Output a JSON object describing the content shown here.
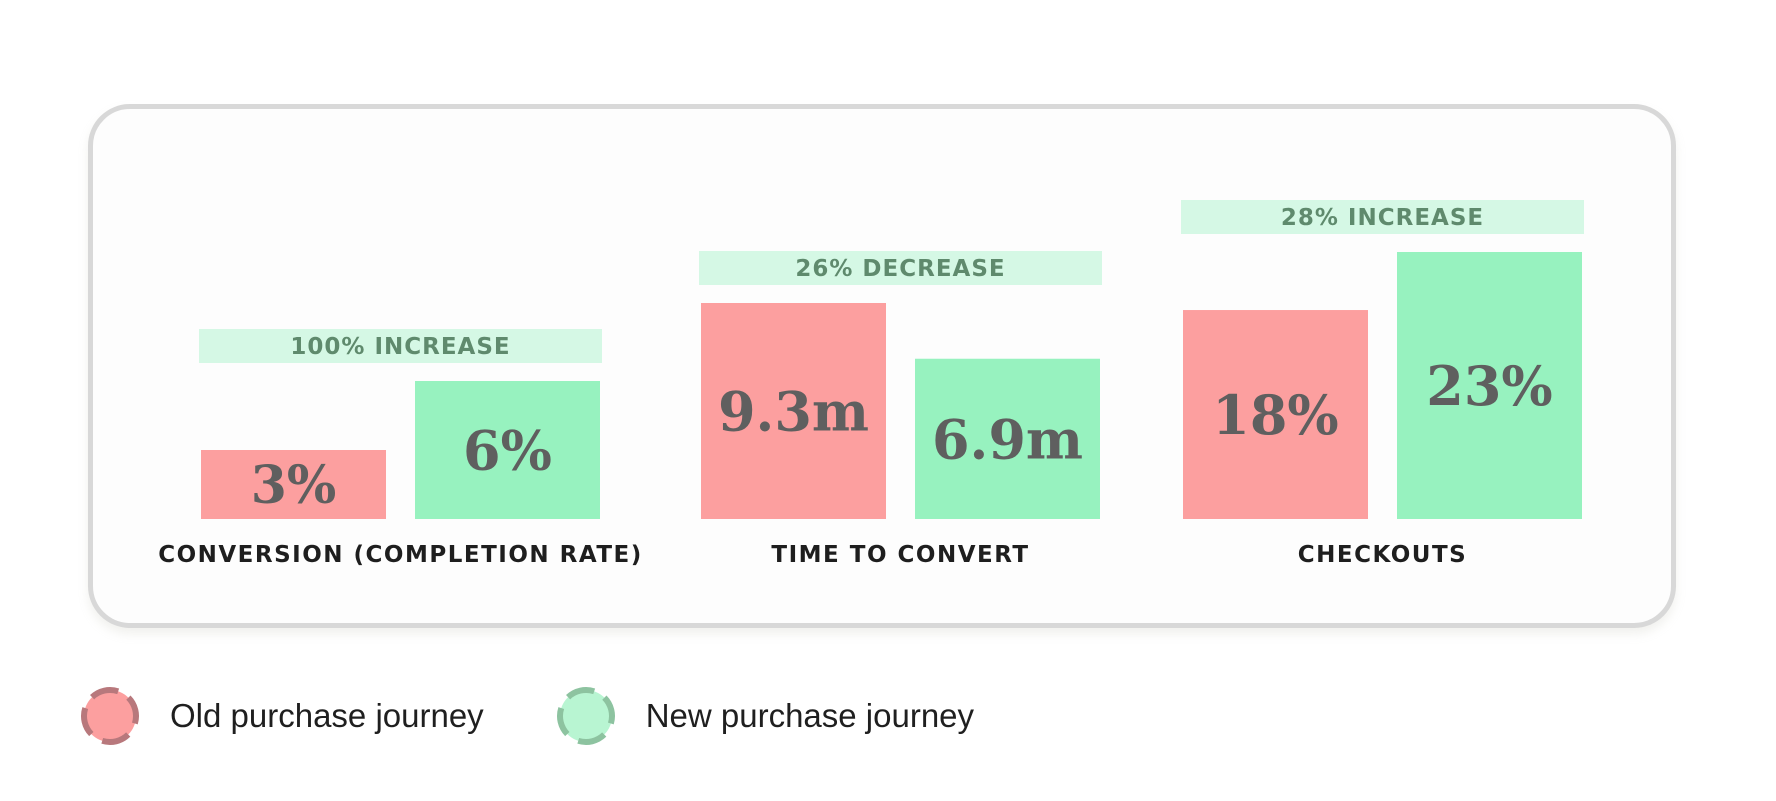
{
  "chart_data": {
    "type": "bar",
    "categories": [
      "CONVERSION (COMPLETION RATE)",
      "TIME TO CONVERT",
      "CHECKOUTS"
    ],
    "series": [
      {
        "name": "Old purchase journey",
        "values": [
          3,
          9.3,
          18
        ],
        "labels": [
          "3%",
          "9.3m",
          "18%"
        ],
        "color": "#fc9f9f"
      },
      {
        "name": "New purchase journey",
        "values": [
          6,
          6.9,
          23
        ],
        "labels": [
          "6%",
          "6.9m",
          "23%"
        ],
        "color": "#97f2bf"
      }
    ],
    "change_labels": [
      "100% INCREASE",
      "26% DECREASE",
      "28% INCREASE"
    ],
    "change_color": "#d5f8e5",
    "change_text_color": "#5f8a6d",
    "value_text_color": "#5f5f5f"
  },
  "legend": {
    "items": [
      {
        "label": "Old purchase journey",
        "color": "#fc9f9f",
        "ring_color": "#b8787c"
      },
      {
        "label": "New purchase journey",
        "color": "#b8f5d2",
        "ring_color": "#8dc3a0"
      }
    ]
  }
}
